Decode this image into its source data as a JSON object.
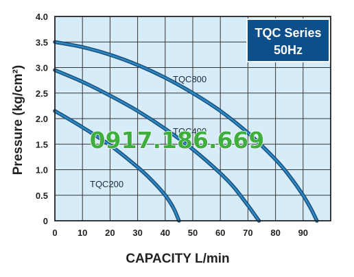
{
  "chart_data": {
    "type": "line",
    "title": "TQC Series",
    "subtitle": "50Hz",
    "xlabel": "CAPACITY L/min",
    "ylabel": "Pressure (kg/cm²)",
    "xlim": [
      0,
      100
    ],
    "ylim": [
      0,
      4.0
    ],
    "xticks": [
      "0",
      "10",
      "20",
      "30",
      "40",
      "50",
      "60",
      "70",
      "80",
      "90"
    ],
    "yticks": [
      "0",
      "0.5",
      "1.0",
      "1.5",
      "2.0",
      "2.5",
      "3.0",
      "3.5",
      "4.0"
    ],
    "grid": true,
    "series": [
      {
        "name": "TQC800",
        "x": [
          0,
          10,
          20,
          30,
          40,
          50,
          60,
          70,
          80,
          85,
          90,
          93,
          95
        ],
        "y": [
          3.5,
          3.4,
          3.25,
          3.05,
          2.8,
          2.5,
          2.15,
          1.72,
          1.2,
          0.88,
          0.5,
          0.22,
          0
        ]
      },
      {
        "name": "TQC400",
        "x": [
          0,
          10,
          20,
          30,
          40,
          50,
          60,
          65,
          70,
          72,
          74
        ],
        "y": [
          2.95,
          2.72,
          2.45,
          2.15,
          1.8,
          1.4,
          0.93,
          0.65,
          0.3,
          0.15,
          0
        ]
      },
      {
        "name": "TQC200",
        "x": [
          0,
          10,
          20,
          30,
          35,
          40,
          43,
          45
        ],
        "y": [
          2.15,
          1.83,
          1.48,
          1.05,
          0.8,
          0.5,
          0.25,
          0
        ]
      }
    ],
    "series_label_color": "#1c2b3d",
    "watermark": "0917.186.669",
    "colors": {
      "plot_bg": "#d6ecf8",
      "grid": "#333333",
      "curve_outer": "#1a4d7c",
      "curve_inner": "#2c8bc4",
      "legend_bg": "#0d4f8b",
      "legend_text": "#ffffff",
      "watermark_fill": "#3fae3f",
      "watermark_stroke": "#ffffff"
    }
  }
}
